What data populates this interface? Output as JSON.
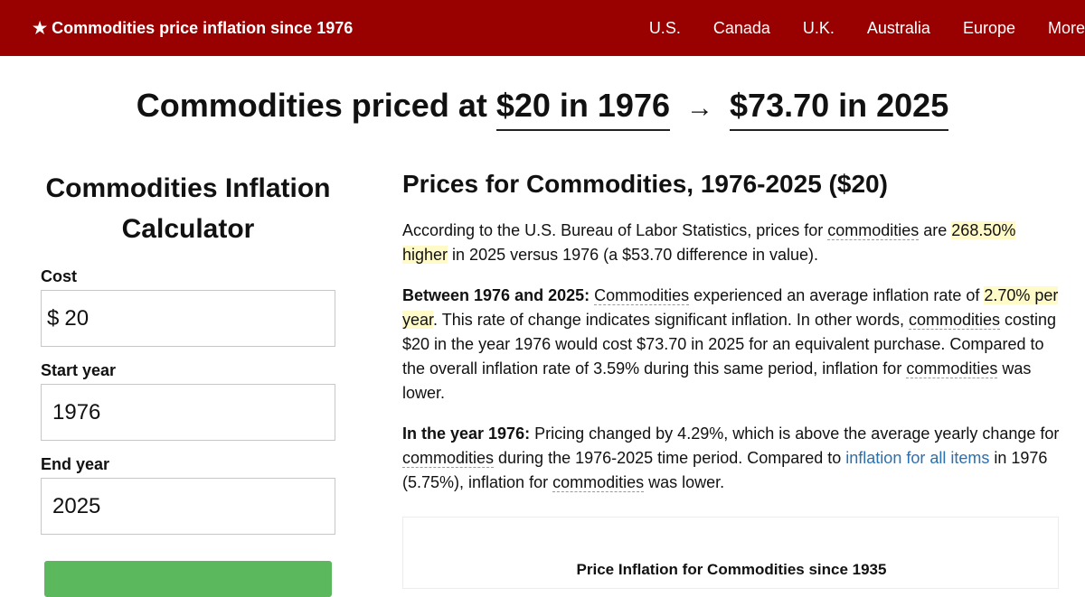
{
  "nav": {
    "brand": "★ Commodities price inflation since 1976",
    "links": [
      "U.S.",
      "Canada",
      "U.K.",
      "Australia",
      "Europe",
      "More"
    ]
  },
  "headline": {
    "prefix": "Commodities priced at",
    "from": "$20 in 1976",
    "arrow": "→",
    "to": "$73.70 in 2025"
  },
  "calculator": {
    "title": "Commodities Inflation Calculator",
    "cost_label": "Cost",
    "cost_prefix": "$",
    "cost_value": "20",
    "start_label": "Start year",
    "start_value": "1976",
    "end_label": "End year",
    "end_value": "2025",
    "button_color": "#5cb85c"
  },
  "article": {
    "title": "Prices for Commodities, 1976-2025 ($20)",
    "p1": {
      "a": "According to the U.S. Bureau of Labor Statistics, prices for ",
      "term": "commodities",
      "b": " are ",
      "mark": "268.50% higher",
      "c": " in 2025 versus 1976 (a $53.70 difference in value)."
    },
    "p2": {
      "lead": "Between 1976 and 2025:",
      "term1": "Commodities",
      "a": " experienced an average inflation rate of ",
      "mark": "2.70% per year",
      "b": ". This rate of change indicates significant inflation. In other words, ",
      "term2": "commodities",
      "c": " costing $20 in the year 1976 would cost $73.70 in 2025 for an equivalent purchase. Compared to the overall inflation rate of 3.59% during this same period, inflation for ",
      "term3": "commodities",
      "d": " was lower."
    },
    "p3": {
      "lead": "In the year 1976:",
      "a": " Pricing changed by 4.29%, which is above the average yearly change for ",
      "term1": "commodities",
      "b": " during the 1976-2025 time period. Compared to ",
      "link": "inflation for all items",
      "c": " in 1976 (5.75%), inflation for ",
      "term2": "commodities",
      "d": " was lower."
    },
    "chart_title": "Price Inflation for Commodities since 1935"
  },
  "colors": {
    "brand_red": "#990000",
    "highlight": "#fffac8",
    "link_blue": "#2a6fb0"
  }
}
